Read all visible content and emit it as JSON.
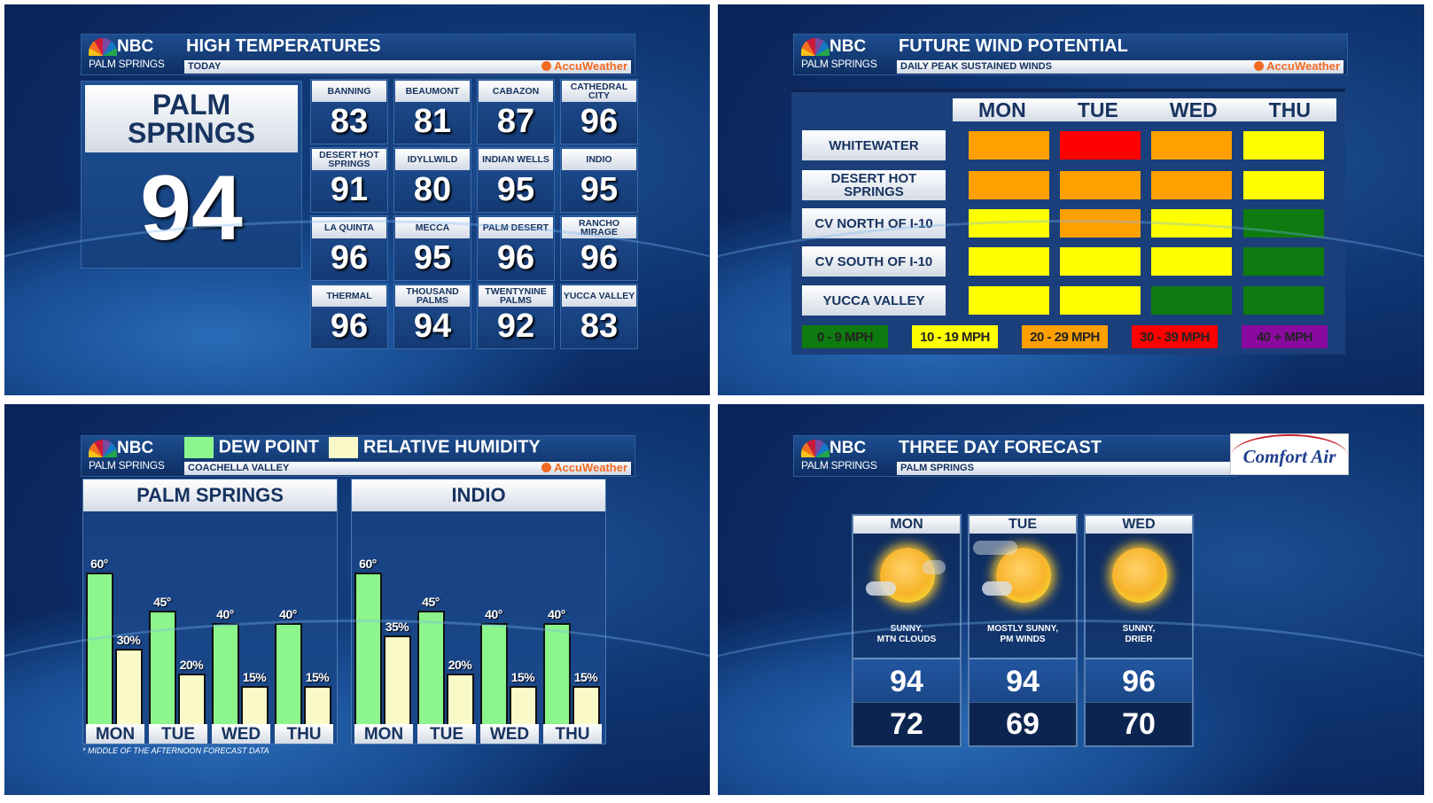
{
  "brand": {
    "network": "NBC",
    "city": "PALM SPRINGS",
    "provider": "AccuWeather"
  },
  "high_temps": {
    "title": "HIGH TEMPERATURES",
    "subtitle": "TODAY",
    "featured": {
      "name": "PALM SPRINGS",
      "value": "94"
    },
    "cities": [
      {
        "name": "BANNING",
        "value": "83"
      },
      {
        "name": "BEAUMONT",
        "value": "81"
      },
      {
        "name": "CABAZON",
        "value": "87"
      },
      {
        "name": "CATHEDRAL CITY",
        "value": "96"
      },
      {
        "name": "DESERT HOT SPRINGS",
        "value": "91"
      },
      {
        "name": "IDYLLWILD",
        "value": "80"
      },
      {
        "name": "INDIAN WELLS",
        "value": "95"
      },
      {
        "name": "INDIO",
        "value": "95"
      },
      {
        "name": "LA QUINTA",
        "value": "96"
      },
      {
        "name": "MECCA",
        "value": "95"
      },
      {
        "name": "PALM DESERT",
        "value": "96"
      },
      {
        "name": "RANCHO MIRAGE",
        "value": "96"
      },
      {
        "name": "THERMAL",
        "value": "96"
      },
      {
        "name": "THOUSAND PALMS",
        "value": "94"
      },
      {
        "name": "TWENTYNINE PALMS",
        "value": "92"
      },
      {
        "name": "YUCCA VALLEY",
        "value": "83"
      }
    ]
  },
  "wind": {
    "title": "FUTURE WIND POTENTIAL",
    "subtitle": "DAILY PEAK SUSTAINED WINDS",
    "days": [
      "MON",
      "TUE",
      "WED",
      "THU"
    ],
    "legend": [
      {
        "label": "0 - 9 MPH",
        "color": "#0f7a0f"
      },
      {
        "label": "10 - 19 MPH",
        "color": "#ffff00"
      },
      {
        "label": "20 - 29 MPH",
        "color": "#ffa000"
      },
      {
        "label": "30 - 39 MPH",
        "color": "#ff0000"
      },
      {
        "label": "40 + MPH",
        "color": "#8a0aa0"
      }
    ],
    "rows": [
      {
        "name": "WHITEWATER",
        "levels": [
          "20 - 29 MPH",
          "30 - 39 MPH",
          "20 - 29 MPH",
          "10 - 19 MPH"
        ]
      },
      {
        "name": "DESERT HOT SPRINGS",
        "levels": [
          "20 - 29 MPH",
          "20 - 29 MPH",
          "20 - 29 MPH",
          "10 - 19 MPH"
        ]
      },
      {
        "name": "CV NORTH OF I-10",
        "levels": [
          "10 - 19 MPH",
          "20 - 29 MPH",
          "10 - 19 MPH",
          "0 - 9 MPH"
        ]
      },
      {
        "name": "CV SOUTH OF I-10",
        "levels": [
          "10 - 19 MPH",
          "10 - 19 MPH",
          "10 - 19 MPH",
          "0 - 9 MPH"
        ]
      },
      {
        "name": "YUCCA VALLEY",
        "levels": [
          "10 - 19 MPH",
          "10 - 19 MPH",
          "0 - 9 MPH",
          "0 - 9 MPH"
        ]
      }
    ]
  },
  "humidity": {
    "legend": [
      {
        "label": "DEW POINT",
        "color": "#8cf58c"
      },
      {
        "label": "RELATIVE HUMIDITY",
        "color": "#fafac8"
      }
    ],
    "subtitle": "COACHELLA VALLEY",
    "footnote": "* MIDDLE OF THE AFTERNOON FORECAST DATA",
    "chart_data": [
      {
        "type": "bar",
        "title": "PALM SPRINGS",
        "categories": [
          "MON",
          "TUE",
          "WED",
          "THU"
        ],
        "series": [
          {
            "name": "DEW POINT",
            "values": [
              60,
              45,
              40,
              40
            ],
            "labels": [
              "60°",
              "45°",
              "40°",
              "40°"
            ]
          },
          {
            "name": "RELATIVE HUMIDITY",
            "values": [
              30,
              20,
              15,
              15
            ],
            "labels": [
              "30%",
              "20%",
              "15%",
              "15%"
            ]
          }
        ]
      },
      {
        "type": "bar",
        "title": "INDIO",
        "categories": [
          "MON",
          "TUE",
          "WED",
          "THU"
        ],
        "series": [
          {
            "name": "DEW POINT",
            "values": [
              60,
              45,
              40,
              40
            ],
            "labels": [
              "60°",
              "45°",
              "40°",
              "40°"
            ]
          },
          {
            "name": "RELATIVE HUMIDITY",
            "values": [
              35,
              20,
              15,
              15
            ],
            "labels": [
              "35%",
              "20%",
              "15%",
              "15%"
            ]
          }
        ]
      }
    ]
  },
  "forecast": {
    "title": "THREE DAY FORECAST",
    "subtitle": "PALM SPRINGS",
    "sponsor": "Comfort Air",
    "days": [
      {
        "day": "MON",
        "icon": "sun-clouds-icon",
        "condition": "SUNNY,\nMTN CLOUDS",
        "high": "94",
        "low": "72"
      },
      {
        "day": "TUE",
        "icon": "sun-wind-icon",
        "condition": "MOSTLY SUNNY,\nPM WINDS",
        "high": "94",
        "low": "69"
      },
      {
        "day": "WED",
        "icon": "sun-icon",
        "condition": "SUNNY,\nDRIER",
        "high": "96",
        "low": "70"
      }
    ]
  }
}
